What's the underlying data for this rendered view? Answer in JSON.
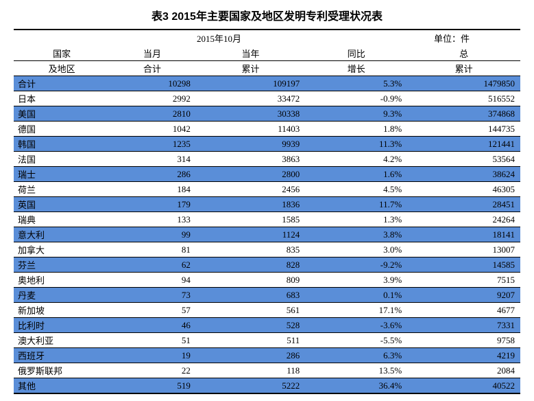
{
  "title": "表3   2015年主要国家及地区发明专利受理状况表",
  "meta": {
    "date": "2015年10月",
    "unit": "单位：件"
  },
  "header": {
    "r1": [
      "国家",
      "当月",
      "当年",
      "同比",
      "总"
    ],
    "r2": [
      "及地区",
      "合计",
      "累计",
      "增长",
      "累计"
    ]
  },
  "colors": {
    "row_highlight": "#5a8ed8",
    "row_plain": "#ffffff",
    "border": "#000000",
    "text": "#000000"
  },
  "rows": [
    {
      "c": "合计",
      "v1": "10298",
      "v2": "109197",
      "v3": "5.3%",
      "v4": "1479850",
      "hl": true
    },
    {
      "c": "日本",
      "v1": "2992",
      "v2": "33472",
      "v3": "-0.9%",
      "v4": "516552",
      "hl": false
    },
    {
      "c": "美国",
      "v1": "2810",
      "v2": "30338",
      "v3": "9.3%",
      "v4": "374868",
      "hl": true
    },
    {
      "c": "德国",
      "v1": "1042",
      "v2": "11403",
      "v3": "1.8%",
      "v4": "144735",
      "hl": false
    },
    {
      "c": "韩国",
      "v1": "1235",
      "v2": "9939",
      "v3": "11.3%",
      "v4": "121441",
      "hl": true
    },
    {
      "c": "法国",
      "v1": "314",
      "v2": "3863",
      "v3": "4.2%",
      "v4": "53564",
      "hl": false
    },
    {
      "c": "瑞士",
      "v1": "286",
      "v2": "2800",
      "v3": "1.6%",
      "v4": "38624",
      "hl": true
    },
    {
      "c": "荷兰",
      "v1": "184",
      "v2": "2456",
      "v3": "4.5%",
      "v4": "46305",
      "hl": false
    },
    {
      "c": "英国",
      "v1": "179",
      "v2": "1836",
      "v3": "11.7%",
      "v4": "28451",
      "hl": true
    },
    {
      "c": "瑞典",
      "v1": "133",
      "v2": "1585",
      "v3": "1.3%",
      "v4": "24264",
      "hl": false
    },
    {
      "c": "意大利",
      "v1": "99",
      "v2": "1124",
      "v3": "3.8%",
      "v4": "18141",
      "hl": true
    },
    {
      "c": "加拿大",
      "v1": "81",
      "v2": "835",
      "v3": "3.0%",
      "v4": "13007",
      "hl": false
    },
    {
      "c": "芬兰",
      "v1": "62",
      "v2": "828",
      "v3": "-9.2%",
      "v4": "14585",
      "hl": true
    },
    {
      "c": "奥地利",
      "v1": "94",
      "v2": "809",
      "v3": "3.9%",
      "v4": "7515",
      "hl": false
    },
    {
      "c": "丹麦",
      "v1": "73",
      "v2": "683",
      "v3": "0.1%",
      "v4": "9207",
      "hl": true
    },
    {
      "c": "新加坡",
      "v1": "57",
      "v2": "561",
      "v3": "17.1%",
      "v4": "4677",
      "hl": false
    },
    {
      "c": "比利时",
      "v1": "46",
      "v2": "528",
      "v3": "-3.6%",
      "v4": "7331",
      "hl": true
    },
    {
      "c": "澳大利亚",
      "v1": "51",
      "v2": "511",
      "v3": "-5.5%",
      "v4": "9758",
      "hl": false
    },
    {
      "c": "西班牙",
      "v1": "19",
      "v2": "286",
      "v3": "6.3%",
      "v4": "4219",
      "hl": true
    },
    {
      "c": "俄罗斯联邦",
      "v1": "22",
      "v2": "118",
      "v3": "13.5%",
      "v4": "2084",
      "hl": false
    },
    {
      "c": "其他",
      "v1": "519",
      "v2": "5222",
      "v3": "36.4%",
      "v4": "40522",
      "hl": true
    }
  ]
}
